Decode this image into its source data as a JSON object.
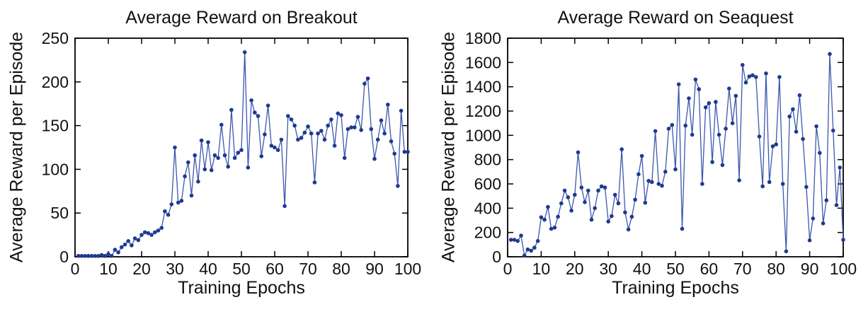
{
  "colors": {
    "line": "#3c57ae",
    "marker": "#1e3a8f",
    "axis": "#000000",
    "text": "#111111",
    "background": "#ffffff"
  },
  "chart_data": [
    {
      "type": "line",
      "title": "Average Reward on Breakout",
      "xlabel": "Training Epochs",
      "ylabel": "Average Reward per Episode",
      "xlim": [
        0,
        100
      ],
      "ylim": [
        0,
        250
      ],
      "xticks": [
        0,
        10,
        20,
        30,
        40,
        50,
        60,
        70,
        80,
        90,
        100
      ],
      "yticks": [
        0,
        50,
        100,
        150,
        200,
        250
      ],
      "grid": false,
      "legend": "none",
      "marker": "circle",
      "x_start": 1,
      "x_step": 1,
      "values": [
        1,
        1,
        1,
        1,
        1,
        1,
        1,
        2,
        1,
        3,
        1,
        8,
        5,
        11,
        14,
        18,
        13,
        21,
        19,
        25,
        28,
        27,
        25,
        28,
        30,
        33,
        52,
        48,
        60,
        125,
        62,
        64,
        92,
        108,
        70,
        116,
        86,
        133,
        100,
        131,
        99,
        116,
        113,
        151,
        116,
        103,
        168,
        113,
        119,
        122,
        234,
        102,
        179,
        165,
        161,
        115,
        140,
        173,
        127,
        125,
        122,
        134,
        58,
        161,
        157,
        150,
        134,
        136,
        142,
        149,
        141,
        85,
        141,
        144,
        134,
        150,
        157,
        127,
        164,
        162,
        113,
        146,
        148,
        148,
        160,
        145,
        198,
        204,
        146,
        112,
        134,
        156,
        141,
        174,
        132,
        118,
        81,
        167,
        120,
        120
      ]
    },
    {
      "type": "line",
      "title": "Average Reward on Seaquest",
      "xlabel": "Training Epochs",
      "ylabel": "Average Reward per Episode",
      "xlim": [
        0,
        100
      ],
      "ylim": [
        0,
        1800
      ],
      "xticks": [
        0,
        10,
        20,
        30,
        40,
        50,
        60,
        70,
        80,
        90,
        100
      ],
      "yticks": [
        0,
        200,
        400,
        600,
        800,
        1000,
        1200,
        1400,
        1600,
        1800
      ],
      "grid": false,
      "legend": "none",
      "marker": "circle",
      "x_start": 1,
      "x_step": 1,
      "values": [
        140,
        140,
        130,
        175,
        10,
        60,
        50,
        75,
        130,
        325,
        305,
        410,
        230,
        240,
        330,
        440,
        545,
        490,
        380,
        510,
        860,
        570,
        450,
        545,
        305,
        400,
        545,
        580,
        570,
        290,
        335,
        510,
        440,
        885,
        365,
        225,
        330,
        470,
        680,
        830,
        445,
        625,
        615,
        1035,
        600,
        585,
        700,
        1055,
        1085,
        720,
        1420,
        230,
        1080,
        1305,
        1005,
        1460,
        1380,
        600,
        1230,
        1265,
        780,
        1275,
        1005,
        755,
        1055,
        1385,
        1100,
        1325,
        630,
        1580,
        1435,
        1485,
        1495,
        1480,
        990,
        580,
        1510,
        615,
        910,
        925,
        1480,
        600,
        45,
        1155,
        1215,
        1030,
        1330,
        970,
        575,
        135,
        315,
        1075,
        855,
        275,
        465,
        1670,
        1040,
        425,
        735,
        140
      ]
    }
  ]
}
